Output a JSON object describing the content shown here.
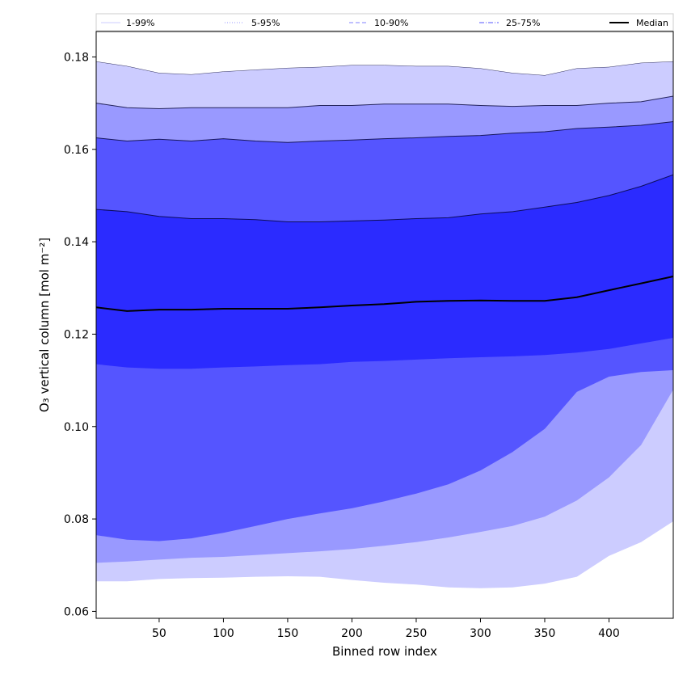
{
  "chart_data": {
    "type": "area",
    "title": "",
    "xlabel": "Binned row index",
    "ylabel": "O₃ vertical column [mol m⁻²]",
    "xlim": [
      1,
      450
    ],
    "ylim": [
      0.0585,
      0.1855
    ],
    "x_ticks": [
      50,
      100,
      150,
      200,
      250,
      300,
      350,
      400
    ],
    "y_ticks": [
      0.06,
      0.08,
      0.1,
      0.12,
      0.14,
      0.16,
      0.18
    ],
    "x_tick_labels": [
      "50",
      "100",
      "150",
      "200",
      "250",
      "300",
      "350",
      "400"
    ],
    "y_tick_labels": [
      "0.06",
      "0.08",
      "0.10",
      "0.12",
      "0.14",
      "0.16",
      "0.18"
    ],
    "grid": false,
    "legend_position": "top, above plot (single row)",
    "legend": [
      {
        "label": "1-99%",
        "color": "#ccccff",
        "style": "solid"
      },
      {
        "label": "5-95%",
        "color": "#9999ff",
        "style": "dotted"
      },
      {
        "label": "10-90%",
        "color": "#8080ff",
        "style": "dashed"
      },
      {
        "label": "25-75%",
        "color": "#5555ff",
        "style": "dashdot"
      },
      {
        "label": "Median",
        "color": "#000000",
        "style": "solid"
      }
    ],
    "x": [
      1,
      25,
      50,
      75,
      100,
      125,
      150,
      175,
      200,
      225,
      250,
      275,
      300,
      325,
      350,
      375,
      400,
      425,
      450
    ],
    "bands": [
      {
        "name": "1-99%",
        "fill": "#ccccff",
        "lower": [
          0.0665,
          0.0665,
          0.067,
          0.0672,
          0.0673,
          0.0675,
          0.0676,
          0.0675,
          0.0668,
          0.0662,
          0.0658,
          0.0652,
          0.065,
          0.0652,
          0.066,
          0.0675,
          0.072,
          0.075,
          0.0795
        ],
        "upper": [
          0.179,
          0.178,
          0.1765,
          0.1762,
          0.1768,
          0.1772,
          0.1776,
          0.1778,
          0.1782,
          0.1782,
          0.178,
          0.178,
          0.1775,
          0.1765,
          0.176,
          0.1775,
          0.1778,
          0.1787,
          0.179
        ]
      },
      {
        "name": "5-95%",
        "fill": "#9999ff",
        "lower": [
          0.0705,
          0.0708,
          0.0712,
          0.0716,
          0.0718,
          0.0722,
          0.0726,
          0.073,
          0.0735,
          0.0742,
          0.075,
          0.076,
          0.0772,
          0.0785,
          0.0805,
          0.084,
          0.089,
          0.096,
          0.108
        ],
        "upper": [
          0.17,
          0.169,
          0.1688,
          0.169,
          0.169,
          0.169,
          0.169,
          0.1695,
          0.1695,
          0.1698,
          0.1698,
          0.1698,
          0.1695,
          0.1693,
          0.1695,
          0.1695,
          0.17,
          0.1703,
          0.1715
        ]
      },
      {
        "name": "10-90%",
        "fill": "#5555ff",
        "lower": [
          0.0765,
          0.0755,
          0.0752,
          0.0758,
          0.077,
          0.0785,
          0.08,
          0.0812,
          0.0823,
          0.0838,
          0.0855,
          0.0875,
          0.0905,
          0.0945,
          0.0995,
          0.1075,
          0.1108,
          0.1118,
          0.1122
        ],
        "upper": [
          0.1625,
          0.1618,
          0.1622,
          0.1618,
          0.1623,
          0.1618,
          0.1615,
          0.1618,
          0.162,
          0.1623,
          0.1625,
          0.1628,
          0.163,
          0.1635,
          0.1638,
          0.1645,
          0.1648,
          0.1652,
          0.166
        ]
      },
      {
        "name": "25-75%",
        "fill": "#2b2bff",
        "lower": [
          0.1135,
          0.1128,
          0.1125,
          0.1125,
          0.1128,
          0.113,
          0.1133,
          0.1135,
          0.114,
          0.1142,
          0.1145,
          0.1148,
          0.115,
          0.1152,
          0.1155,
          0.116,
          0.1168,
          0.118,
          0.1192
        ],
        "upper": [
          0.147,
          0.1465,
          0.1455,
          0.145,
          0.145,
          0.1448,
          0.1443,
          0.1443,
          0.1445,
          0.1447,
          0.145,
          0.1452,
          0.146,
          0.1465,
          0.1475,
          0.1485,
          0.15,
          0.152,
          0.1545
        ]
      }
    ],
    "series": [
      {
        "name": "Median",
        "color": "#000000",
        "values": [
          0.1258,
          0.125,
          0.1253,
          0.1253,
          0.1255,
          0.1255,
          0.1255,
          0.1258,
          0.1262,
          0.1265,
          0.127,
          0.1272,
          0.1273,
          0.1272,
          0.1272,
          0.128,
          0.1295,
          0.131,
          0.1325
        ]
      }
    ]
  }
}
